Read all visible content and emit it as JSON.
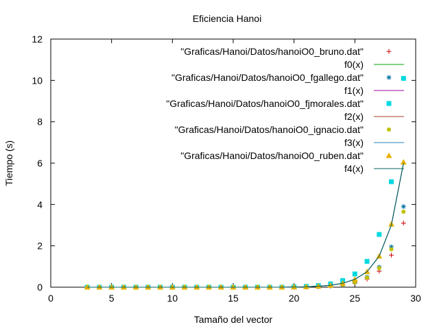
{
  "chart_data": {
    "type": "scatter",
    "title": "Eficiencia Hanoi",
    "xlabel": "Tamaño del vector",
    "ylabel": "Tiempo (s)",
    "xlim": [
      0,
      30
    ],
    "ylim": [
      0,
      12
    ],
    "xticks": [
      0,
      5,
      10,
      15,
      20,
      25,
      30
    ],
    "yticks": [
      0,
      2,
      4,
      6,
      8,
      10,
      12
    ],
    "grid": false,
    "legend_position": "top-right",
    "x": [
      3,
      4,
      5,
      6,
      7,
      8,
      9,
      10,
      11,
      12,
      13,
      14,
      15,
      16,
      17,
      18,
      19,
      20,
      21,
      22,
      23,
      24,
      25,
      26,
      27,
      28,
      29
    ],
    "series": [
      {
        "name": "\"Graficas/Hanoi/Datos/hanoiO0_bruno.dat\"",
        "kind": "points",
        "marker": "plus",
        "color": "#cc0000",
        "values": [
          0,
          0,
          0,
          0,
          0,
          0,
          0,
          0,
          0,
          0,
          0,
          0,
          0,
          0,
          0,
          0,
          0,
          0,
          0.01,
          0.02,
          0.05,
          0.1,
          0.2,
          0.39,
          0.78,
          1.55,
          3.1
        ]
      },
      {
        "name": "f0(x)",
        "kind": "line",
        "color": "#00a000",
        "values": [
          0,
          0,
          0,
          0,
          0,
          0,
          0,
          0,
          0,
          0,
          0,
          0,
          0,
          0,
          0,
          0,
          0,
          0.01,
          0.02,
          0.05,
          0.09,
          0.19,
          0.38,
          0.75,
          1.5,
          3.0,
          6.0
        ]
      },
      {
        "name": "\"Graficas/Hanoi/Datos/hanoiO0_fgallego.dat\"",
        "kind": "points",
        "marker": "star",
        "color": "#0070a0",
        "values": [
          0,
          0,
          0,
          0,
          0,
          0,
          0,
          0,
          0,
          0,
          0,
          0,
          0,
          0,
          0,
          0,
          0,
          0,
          0.01,
          0.03,
          0.06,
          0.12,
          0.24,
          0.49,
          0.97,
          1.95,
          3.9
        ]
      },
      {
        "name": "f1(x)",
        "kind": "line",
        "color": "#a000a0",
        "values": [
          0,
          0,
          0,
          0,
          0,
          0,
          0,
          0,
          0,
          0,
          0,
          0,
          0,
          0,
          0,
          0,
          0,
          0.01,
          0.02,
          0.05,
          0.09,
          0.19,
          0.38,
          0.75,
          1.5,
          3.0,
          6.0
        ]
      },
      {
        "name": "\"Graficas/Hanoi/Datos/hanoiO0_fjmorales.dat\"",
        "kind": "points",
        "marker": "square",
        "color": "#00d8e0",
        "values": [
          0,
          0,
          0,
          0,
          0,
          0,
          0,
          0,
          0,
          0,
          0,
          0,
          0,
          0,
          0,
          0,
          0,
          0.02,
          0.04,
          0.08,
          0.16,
          0.32,
          0.64,
          1.25,
          2.55,
          5.1,
          10.1
        ]
      },
      {
        "name": "f2(x)",
        "kind": "line",
        "color": "#a04020",
        "values": [
          0,
          0,
          0,
          0,
          0,
          0,
          0,
          0,
          0,
          0,
          0,
          0,
          0,
          0,
          0,
          0,
          0,
          0.01,
          0.02,
          0.05,
          0.09,
          0.19,
          0.38,
          0.75,
          1.5,
          3.0,
          6.0
        ]
      },
      {
        "name": "\"Graficas/Hanoi/Datos/hanoiO0_ignacio.dat\"",
        "kind": "points",
        "marker": "circle",
        "color": "#c0c000",
        "values": [
          0,
          0,
          0,
          0,
          0,
          0,
          0,
          0,
          0,
          0,
          0,
          0,
          0,
          0,
          0,
          0,
          0,
          0,
          0.01,
          0.03,
          0.06,
          0.12,
          0.23,
          0.46,
          0.92,
          1.83,
          3.65
        ]
      },
      {
        "name": "f3(x)",
        "kind": "line",
        "color": "#2080c0",
        "values": [
          0,
          0,
          0,
          0,
          0,
          0,
          0,
          0,
          0,
          0,
          0,
          0,
          0,
          0,
          0,
          0,
          0,
          0.01,
          0.02,
          0.05,
          0.09,
          0.19,
          0.38,
          0.75,
          1.5,
          3.0,
          6.0
        ]
      },
      {
        "name": "\"Graficas/Hanoi/Datos/hanoiO0_ruben.dat\"",
        "kind": "points",
        "marker": "triangle",
        "color": "#e8b000",
        "values": [
          0,
          0,
          0,
          0,
          0,
          0,
          0,
          0,
          0,
          0,
          0,
          0,
          0,
          0,
          0,
          0,
          0,
          0.01,
          0.02,
          0.05,
          0.09,
          0.19,
          0.38,
          0.75,
          1.5,
          3.05,
          6.05
        ]
      },
      {
        "name": "f4(x)",
        "kind": "line",
        "color": "#006060",
        "values": [
          0,
          0,
          0,
          0,
          0,
          0,
          0,
          0,
          0,
          0,
          0,
          0,
          0,
          0,
          0,
          0,
          0,
          0.01,
          0.02,
          0.05,
          0.09,
          0.19,
          0.38,
          0.75,
          1.5,
          3.0,
          6.0
        ]
      }
    ]
  }
}
